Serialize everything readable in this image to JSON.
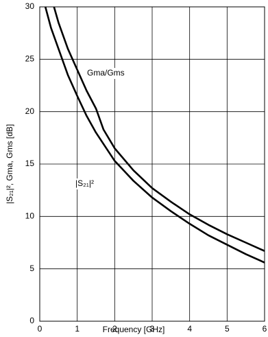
{
  "chart_data": {
    "type": "line",
    "xlabel": "Frequency [GHz]",
    "ylabel": "|S₂₁|², Gma, Gms [dB]",
    "xlim": [
      0,
      6
    ],
    "xticks": [
      0,
      1,
      2,
      3,
      4,
      5,
      6
    ],
    "ylim": [
      0,
      30
    ],
    "yticks": [
      0,
      5,
      10,
      15,
      20,
      25,
      30
    ],
    "grid": true,
    "series": [
      {
        "name": "Gma/Gms",
        "color": "#000000",
        "x": [
          0.38,
          0.5,
          0.75,
          1,
          1.25,
          1.5,
          1.7,
          2,
          2.5,
          3,
          3.5,
          4,
          4.5,
          5,
          5.5,
          6
        ],
        "values": [
          30,
          28.5,
          26,
          24,
          22,
          20.3,
          18.3,
          16.5,
          14.4,
          12.7,
          11.4,
          10.2,
          9.2,
          8.3,
          7.5,
          6.7
        ]
      },
      {
        "name": "|S₂₁|²",
        "color": "#000000",
        "x": [
          0.15,
          0.3,
          0.5,
          0.75,
          1,
          1.25,
          1.5,
          2,
          2.5,
          3,
          3.5,
          4,
          4.5,
          5,
          5.5,
          6
        ],
        "values": [
          30,
          28,
          26,
          23.5,
          21.5,
          19.6,
          18,
          15.3,
          13.4,
          11.8,
          10.5,
          9.3,
          8.2,
          7.3,
          6.4,
          5.6
        ]
      }
    ]
  }
}
